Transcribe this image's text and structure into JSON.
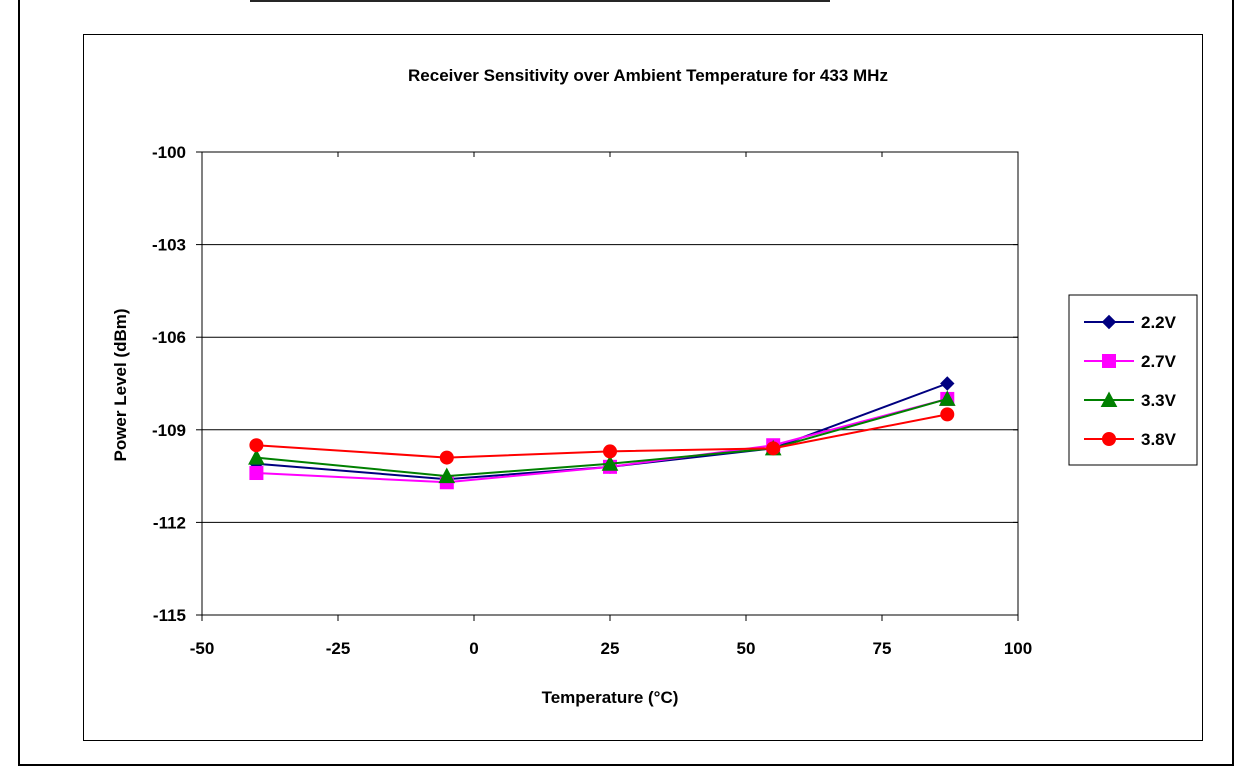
{
  "chart_data": {
    "type": "line",
    "title": "Receiver Sensitivity over Ambient Temperature for 433 MHz",
    "xlabel": "Temperature (°C)",
    "ylabel": "Power Level (dBm)",
    "xlim": [
      -50,
      100
    ],
    "ylim": [
      -115,
      -100
    ],
    "x_ticks": [
      "-50",
      "-25",
      "0",
      "25",
      "50",
      "75",
      "100"
    ],
    "y_ticks": [
      "-100",
      "-103",
      "-106",
      "-109",
      "-112",
      "-115"
    ],
    "grid": "horizontal",
    "legend_position": "right",
    "x": [
      -40,
      -5,
      25,
      55,
      87
    ],
    "series": [
      {
        "name": "2.2V",
        "marker": "diamond",
        "color": "#000080",
        "values": [
          -110.1,
          -110.6,
          -110.2,
          -109.6,
          -107.5
        ]
      },
      {
        "name": "2.7V",
        "marker": "square",
        "color": "#FF00FF",
        "values": [
          -110.4,
          -110.7,
          -110.2,
          -109.5,
          -108.0
        ]
      },
      {
        "name": "3.3V",
        "marker": "triangle",
        "color": "#008000",
        "values": [
          -109.9,
          -110.5,
          -110.1,
          -109.6,
          -108.0
        ]
      },
      {
        "name": "3.8V",
        "marker": "circle",
        "color": "#FF0000",
        "values": [
          -109.5,
          -109.9,
          -109.7,
          -109.6,
          -108.5
        ]
      }
    ]
  }
}
